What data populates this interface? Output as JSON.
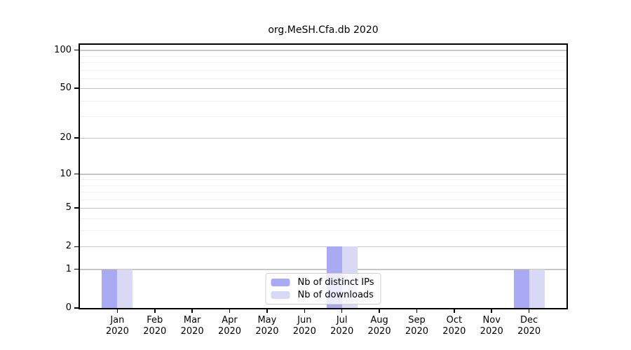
{
  "title": "org.MeSH.Cfa.db 2020",
  "legend": {
    "items": [
      {
        "label": "Nb of distinct IPs",
        "color": "#a9a9f4"
      },
      {
        "label": "Nb of downloads",
        "color": "#d9d9f6"
      }
    ]
  },
  "chart_data": {
    "type": "bar",
    "title": "org.MeSH.Cfa.db 2020",
    "categories": [
      "Jan",
      "Feb",
      "Mar",
      "Apr",
      "May",
      "Jun",
      "Jul",
      "Aug",
      "Sep",
      "Oct",
      "Nov",
      "Dec"
    ],
    "category_year": "2020",
    "series": [
      {
        "name": "Nb of distinct IPs",
        "color": "#a9a9f4",
        "values": [
          1,
          0,
          0,
          0,
          0,
          0,
          2,
          0,
          0,
          0,
          0,
          1
        ]
      },
      {
        "name": "Nb of downloads",
        "color": "#d9d9f6",
        "values": [
          1,
          0,
          0,
          0,
          0,
          0,
          2,
          0,
          0,
          0,
          0,
          1
        ]
      }
    ],
    "yscale": "log1p",
    "ylim": [
      0,
      110
    ],
    "yticks": [
      0,
      1,
      2,
      5,
      10,
      20,
      50,
      100
    ],
    "yticks_minor": [
      3,
      4,
      6,
      7,
      8,
      9,
      30,
      40,
      60,
      70,
      80,
      90
    ],
    "grid": true,
    "legend_position": "inside-bottom-center",
    "colors": {
      "grid_major": "#c6c6c6",
      "grid_minor": "#efefef",
      "axis": "#000000",
      "background": "#ffffff"
    }
  }
}
